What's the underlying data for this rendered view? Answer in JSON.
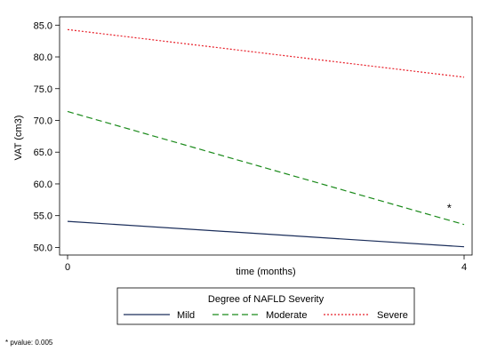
{
  "chart_data": {
    "type": "line",
    "xlabel": "time (months)",
    "ylabel": "VAT (cm3)",
    "x": [
      0,
      4
    ],
    "xticks": [
      0,
      4
    ],
    "xtick_labels": [
      "0",
      "4"
    ],
    "xlim": [
      0,
      4
    ],
    "ylim": [
      48.8,
      86.3
    ],
    "yticks": [
      50,
      55,
      60,
      65,
      70,
      75,
      80,
      85
    ],
    "ytick_labels": [
      "50.0",
      "55.0",
      "60.0",
      "65.0",
      "70.0",
      "75.0",
      "80.0",
      "85.0"
    ],
    "grid": false,
    "legend": {
      "title": "Degree of NAFLD Severity",
      "placement": "bottom"
    },
    "series": [
      {
        "name": "Mild",
        "values": [
          54.1,
          50.1
        ],
        "color": "#1a2d5a",
        "dash": "solid"
      },
      {
        "name": "Moderate",
        "values": [
          71.4,
          53.6
        ],
        "color": "#1a8a1a",
        "dash": "dashed"
      },
      {
        "name": "Severe",
        "values": [
          84.3,
          76.8
        ],
        "color": "#e8202a",
        "dash": "dotted"
      }
    ],
    "annotations": [
      {
        "text": "*",
        "x": 3.85,
        "y": 56.3
      }
    ],
    "footnote": "* pvalue: 0.005"
  }
}
